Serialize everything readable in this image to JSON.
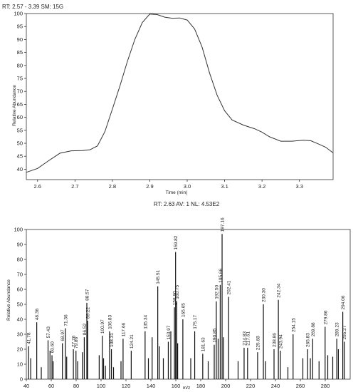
{
  "chart_data": [
    {
      "type": "line",
      "header": "RT: 2.57 - 3.39   SM: 15G",
      "xlabel": "Time (min)",
      "ylabel": "Relative Abundance",
      "xlim": [
        2.57,
        3.39
      ],
      "ylim": [
        36,
        100
      ],
      "xticks": [
        2.6,
        2.7,
        2.8,
        2.9,
        3.0,
        3.1,
        3.2,
        3.3
      ],
      "yticks": [
        40,
        45,
        50,
        55,
        60,
        65,
        70,
        75,
        80,
        85,
        90,
        95,
        100
      ],
      "grid": false,
      "series": [
        {
          "x": [
            2.57,
            2.6,
            2.63,
            2.66,
            2.69,
            2.72,
            2.74,
            2.76,
            2.78,
            2.8,
            2.82,
            2.84,
            2.86,
            2.88,
            2.9,
            2.92,
            2.94,
            2.96,
            2.98,
            3.0,
            3.02,
            3.04,
            3.06,
            3.08,
            3.1,
            3.12,
            3.15,
            3.18,
            3.2,
            3.22,
            3.25,
            3.28,
            3.31,
            3.33,
            3.35,
            3.37,
            3.39
          ],
          "y": [
            38.8,
            40.3,
            43.3,
            46.2,
            47.1,
            47.2,
            47.5,
            49.0,
            54.5,
            63.2,
            72.0,
            81.5,
            90.0,
            96.5,
            99.8,
            99.6,
            98.6,
            98.2,
            98.3,
            97.5,
            94.0,
            87.0,
            77.0,
            68.5,
            62.5,
            59.0,
            57.0,
            55.6,
            54.3,
            52.5,
            50.8,
            50.8,
            51.2,
            51.0,
            49.8,
            48.5,
            46.3
          ]
        }
      ]
    },
    {
      "type": "bar",
      "header": "RT: 2.63   AV: 1   NL: 4.53E2",
      "xlabel": "m/z",
      "ylabel": "Relative Abundance",
      "xlim": [
        40,
        300
      ],
      "ylim": [
        0,
        100
      ],
      "xticks": [
        40,
        60,
        80,
        100,
        120,
        140,
        160,
        180,
        200,
        220,
        240,
        260,
        280
      ],
      "yticks": [
        0,
        10,
        20,
        30,
        40,
        50,
        60,
        70,
        80,
        90,
        100
      ],
      "grid": false,
      "series": [
        {
          "values": [
            [
              41.78,
              22,
              "41.78"
            ],
            [
              43.5,
              14,
              ""
            ],
            [
              48.36,
              38,
              "48.36"
            ],
            [
              52.0,
              8,
              ""
            ],
            [
              57.43,
              26,
              "57.43"
            ],
            [
              59.0,
              19,
              ""
            ],
            [
              60.6,
              16,
              "60.60"
            ],
            [
              61.5,
              12,
              ""
            ],
            [
              68.97,
              24,
              "68.97"
            ],
            [
              71.36,
              34,
              "71.36"
            ],
            [
              72.4,
              15,
              ""
            ],
            [
              77.76,
              20,
              "77.76"
            ],
            [
              79.86,
              19,
              "79.86"
            ],
            [
              81.2,
              12,
              ""
            ],
            [
              85.0,
              18,
              ""
            ],
            [
              86.52,
              28,
              "86.52"
            ],
            [
              88.57,
              51,
              "88.57"
            ],
            [
              89.22,
              39,
              "89.22"
            ],
            [
              98.5,
              16,
              ""
            ],
            [
              100.97,
              29,
              "100.97"
            ],
            [
              102.0,
              14,
              ""
            ],
            [
              103.5,
              9,
              ""
            ],
            [
              106.83,
              32,
              "106.83"
            ],
            [
              108.31,
              20,
              "108.31"
            ],
            [
              110.0,
              8,
              ""
            ],
            [
              116.0,
              12,
              ""
            ],
            [
              117.66,
              27,
              "117.66"
            ],
            [
              124.21,
              19,
              "124.21"
            ],
            [
              135.34,
              32,
              "135.34"
            ],
            [
              138.0,
              14,
              ""
            ],
            [
              141.0,
              28,
              ""
            ],
            [
              145.51,
              62,
              "145.51"
            ],
            [
              146.8,
              22,
              ""
            ],
            [
              150.0,
              14,
              ""
            ],
            [
              153.97,
              25,
              "153.97"
            ],
            [
              156.0,
              32,
              ""
            ],
            [
              158.9,
              48,
              "158.90"
            ],
            [
              159.82,
              85,
              "159.82"
            ],
            [
              160.75,
              52,
              "160.75"
            ],
            [
              161.5,
              24,
              ""
            ],
            [
              165.65,
              40,
              "165.65"
            ],
            [
              172.0,
              14,
              ""
            ],
            [
              175.17,
              32,
              "175.17"
            ],
            [
              181.63,
              17,
              "181.63"
            ],
            [
              186.0,
              12,
              ""
            ],
            [
              190.85,
              23,
              "190.85"
            ],
            [
              192.5,
              52,
              "192.50"
            ],
            [
              194.0,
              27,
              ""
            ],
            [
              195.66,
              63,
              "195.66"
            ],
            [
              197.16,
              97,
              "197.16"
            ],
            [
              198.2,
              28,
              ""
            ],
            [
              202.41,
              55,
              "202.41"
            ],
            [
              210.0,
              12,
              ""
            ],
            [
              214.83,
              21,
              "214.83"
            ],
            [
              217.61,
              21,
              "217.61"
            ],
            [
              225.68,
              18,
              "225.68"
            ],
            [
              230.3,
              50,
              "230.30"
            ],
            [
              232.0,
              12,
              ""
            ],
            [
              238.86,
              20,
              "238.86"
            ],
            [
              242.34,
              53,
              "242.34"
            ],
            [
              243.94,
              19,
              "243.94"
            ],
            [
              250.0,
              8,
              ""
            ],
            [
              254.15,
              30,
              "254.15"
            ],
            [
              262.0,
              14,
              ""
            ],
            [
              265.83,
              20,
              "265.83"
            ],
            [
              268.0,
              14,
              ""
            ],
            [
              269.88,
              27,
              "269.88"
            ],
            [
              275.0,
              12,
              ""
            ],
            [
              279.86,
              35,
              "279.86"
            ],
            [
              282.0,
              16,
              ""
            ],
            [
              286.0,
              15,
              ""
            ],
            [
              289.23,
              27,
              "289.23"
            ],
            [
              290.5,
              20,
              ""
            ],
            [
              294.06,
              45,
              "294.06"
            ],
            [
              295.27,
              25,
              "295.27"
            ]
          ]
        }
      ]
    }
  ]
}
